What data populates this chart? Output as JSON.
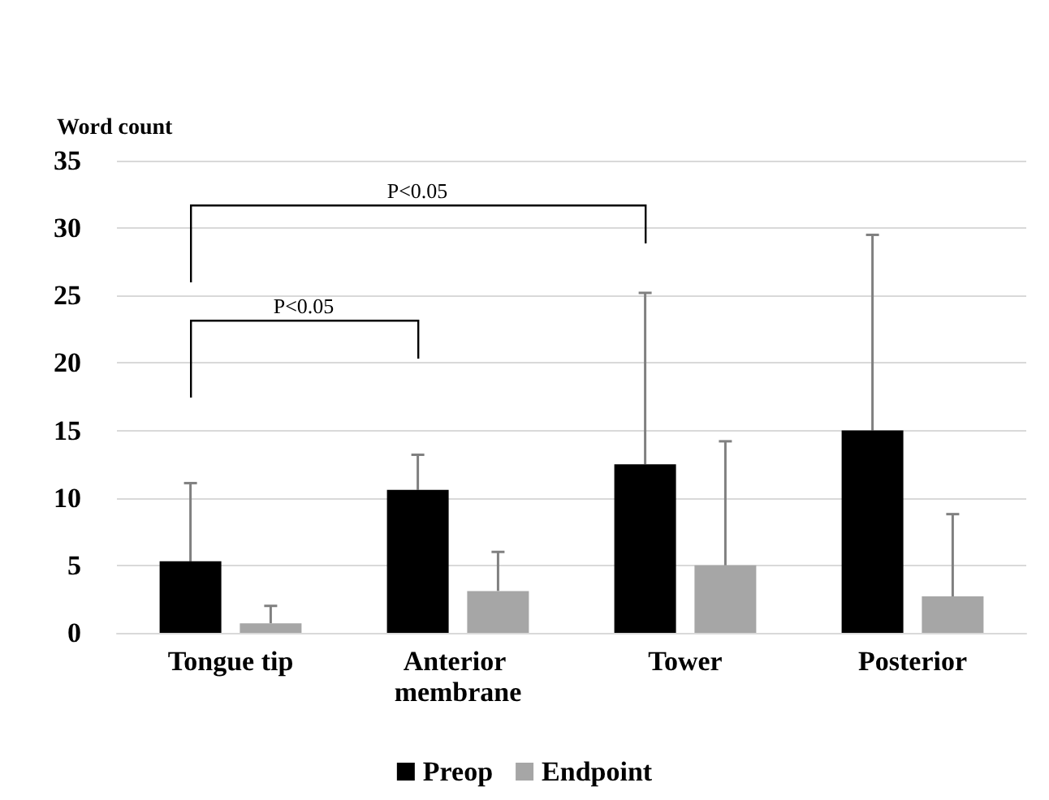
{
  "chart_data": {
    "type": "bar",
    "ylabel": "Word count",
    "categories": [
      "Tongue tip",
      "Anterior membrane",
      "Tower",
      "Posterior"
    ],
    "series": [
      {
        "name": "Preop",
        "color": "#000000",
        "values": [
          5.3,
          10.6,
          12.5,
          15.0
        ],
        "errors": [
          [
            5.3,
            11.1
          ],
          [
            10.6,
            13.2
          ],
          [
            12.5,
            25.2
          ],
          [
            15.0,
            29.5
          ]
        ]
      },
      {
        "name": "Endpoint",
        "color": "#a6a6a6",
        "values": [
          0.7,
          3.1,
          5.0,
          2.7
        ],
        "errors": [
          [
            0.7,
            2.0
          ],
          [
            3.1,
            6.0
          ],
          [
            5.0,
            14.2
          ],
          [
            2.7,
            8.8
          ]
        ]
      }
    ],
    "ylim": [
      0,
      35
    ],
    "yticks": [
      0,
      5,
      10,
      15,
      20,
      25,
      30,
      35
    ],
    "grid": "y",
    "legend": "bottom",
    "annotations": [
      "P<0.05",
      "P<0.05"
    ]
  }
}
